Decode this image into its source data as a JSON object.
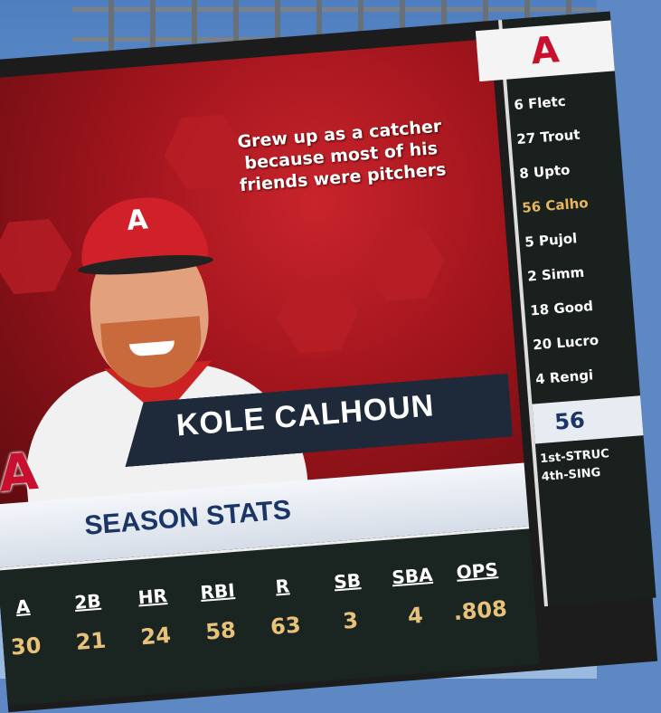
{
  "fun_fact": "Grew up as a catcher because most of his friends were pitchers",
  "player_name": "KOLE CALHOUN",
  "team_logo": "A",
  "season_stats_title": "SEASON STATS",
  "stats": [
    {
      "label": "A",
      "value": "30"
    },
    {
      "label": "2B",
      "value": "21"
    },
    {
      "label": "HR",
      "value": "24"
    },
    {
      "label": "RBI",
      "value": "58"
    },
    {
      "label": "R",
      "value": "63"
    },
    {
      "label": "SB",
      "value": "3"
    },
    {
      "label": "SBA",
      "value": "4"
    },
    {
      "label": "OPS",
      "value": ".808"
    }
  ],
  "lineup": [
    {
      "text": "6 Fletc",
      "current": false
    },
    {
      "text": "27 Trout",
      "current": false
    },
    {
      "text": "8 Upto",
      "current": false
    },
    {
      "text": "56 Calho",
      "current": true
    },
    {
      "text": "5 Pujol",
      "current": false
    },
    {
      "text": "2 Simm",
      "current": false
    },
    {
      "text": "18 Good",
      "current": false
    },
    {
      "text": "20 Lucro",
      "current": false
    },
    {
      "text": "4 Rengi",
      "current": false
    }
  ],
  "current_batter_number": "56",
  "at_bats": [
    "1st-STRUC",
    "4th-SING"
  ],
  "colors": {
    "team_red": "#c8102e",
    "navy": "#1b3566",
    "stat_gold": "#e9c27a"
  }
}
